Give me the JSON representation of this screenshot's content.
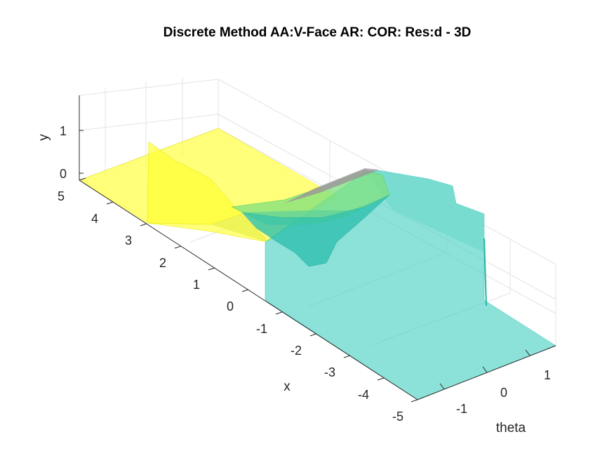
{
  "chart_data": {
    "type": "surface",
    "title": "Discrete Method AA:V-Face AR: COR:      Res:d - 3D",
    "xlabel": "x",
    "ylabel": "y",
    "thetalabel": "theta",
    "x_ticks": [
      "5",
      "4",
      "3",
      "2",
      "1",
      "0",
      "-1",
      "-2",
      "-3",
      "-4",
      "-5"
    ],
    "theta_ticks": [
      "-1",
      "0",
      "1"
    ],
    "y_ticks": [
      "0",
      "1"
    ],
    "xlim": [
      -5,
      5
    ],
    "thetalim": [
      -1.6,
      1.6
    ],
    "ylim": [
      0,
      1.6
    ],
    "grid": true,
    "surfaces": [
      {
        "region": "x from 5 to about 1",
        "y": 0,
        "color": "#ffff33",
        "alpha": 0.65
      },
      {
        "region": "ridge near x about 3.2",
        "y_peak": 0.8,
        "color": "#ffff33",
        "alpha": 0.65
      },
      {
        "region": "transition trough near x 0 to 1",
        "y_min": -0.5,
        "color": "#3ec99a",
        "alpha": 0.65
      },
      {
        "region": "x from about 0 to -5",
        "y": 0,
        "color": "#4fd2c5",
        "alpha": 0.65
      },
      {
        "region": "vertical wall near x 0",
        "y_max": 1.0,
        "color": "#4fd2c5",
        "alpha": 0.65
      }
    ],
    "colors": {
      "yellow": "#ffff33",
      "green": "#7ee07e",
      "teal": "#4fd2c5",
      "dark_teal": "#2ebfae",
      "grey": "#9a8f97"
    }
  }
}
